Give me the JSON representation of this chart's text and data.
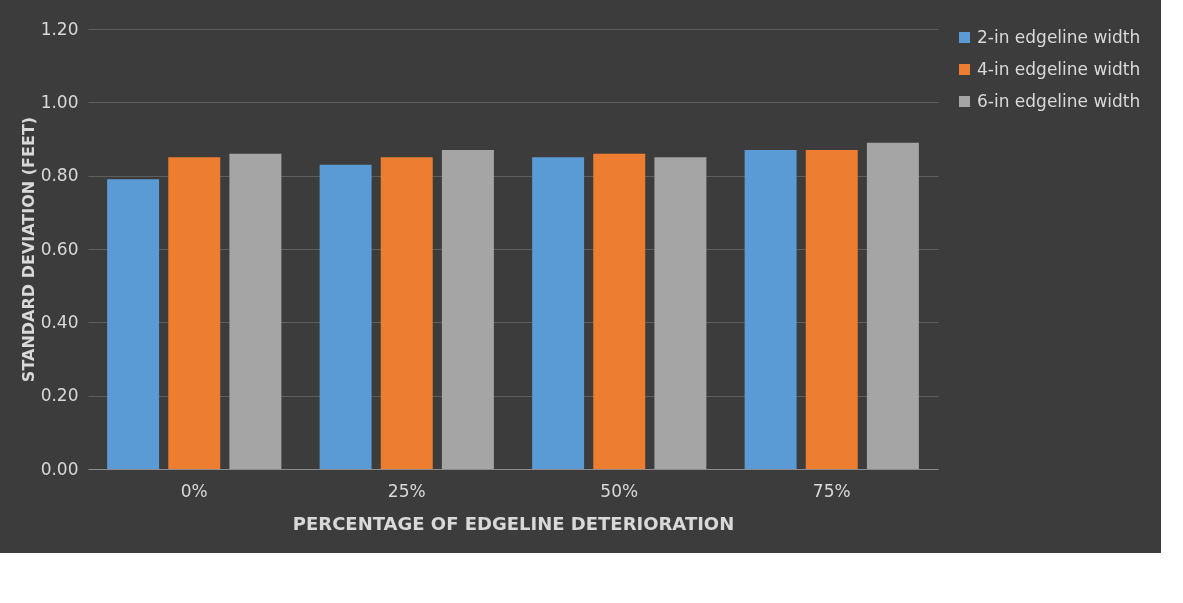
{
  "chart_data": {
    "type": "bar",
    "xlabel": "PERCENTAGE OF EDGELINE DETERIORATION",
    "ylabel": "STANDARD DEVIATION (FEET)",
    "categories": [
      "0%",
      "25%",
      "50%",
      "75%"
    ],
    "series": [
      {
        "name": "2-in edgeline width",
        "color": "#5b9bd5",
        "values": [
          0.79,
          0.83,
          0.85,
          0.87
        ]
      },
      {
        "name": "4-in edgeline width",
        "color": "#ed7d31",
        "values": [
          0.85,
          0.85,
          0.86,
          0.87
        ]
      },
      {
        "name": "6-in edgeline width",
        "color": "#a5a5a5",
        "values": [
          0.86,
          0.87,
          0.85,
          0.89
        ]
      }
    ],
    "ylim": [
      0,
      1.2
    ],
    "yticks": [
      {
        "value": 0,
        "label": "0.00"
      },
      {
        "value": 0.2,
        "label": "0.20"
      },
      {
        "value": 0.4,
        "label": "0.40"
      },
      {
        "value": 0.6,
        "label": "0.60"
      },
      {
        "value": 0.8,
        "label": "0.80"
      },
      {
        "value": 1.0,
        "label": "1.00"
      },
      {
        "value": 1.2,
        "label": "1.20"
      }
    ],
    "grid": "y",
    "legend": "right"
  }
}
